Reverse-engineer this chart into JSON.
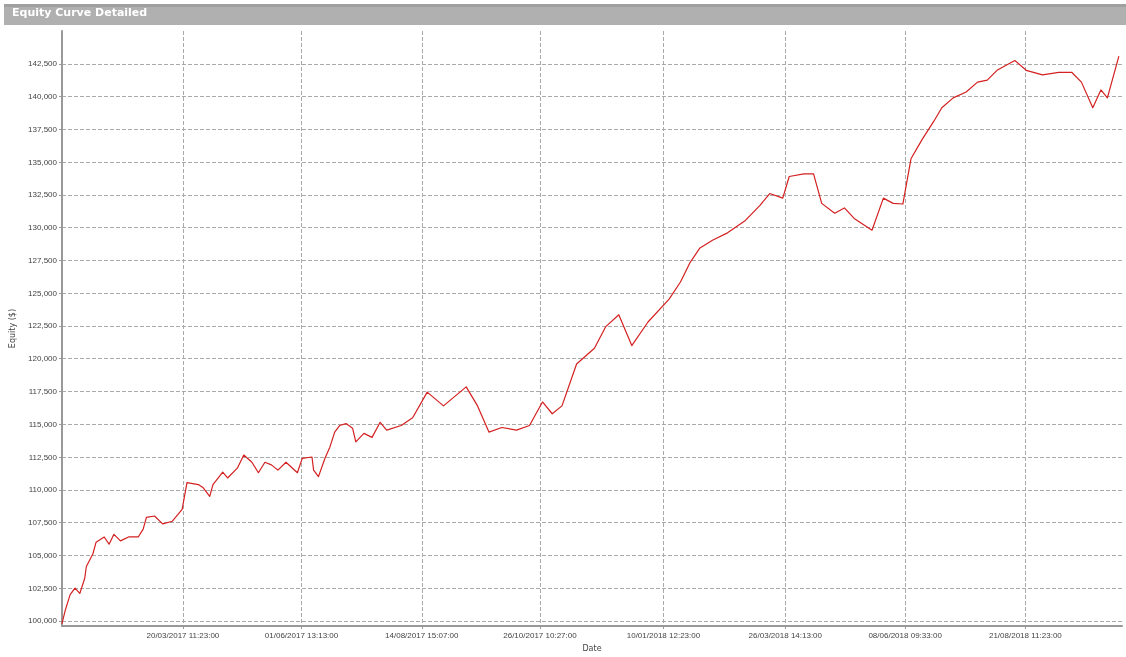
{
  "chart_data": {
    "type": "line",
    "title": "Equity Curve Detailed",
    "xlabel": "Date",
    "ylabel": "Equity ($)",
    "x": [
      "2017-01-05",
      "2017-01-07",
      "2017-01-10",
      "2017-01-13",
      "2017-01-16",
      "2017-01-19",
      "2017-01-20",
      "2017-01-24",
      "2017-01-26",
      "2017-01-31",
      "2017-02-03",
      "2017-02-06",
      "2017-02-10",
      "2017-02-15",
      "2017-02-21",
      "2017-02-24",
      "2017-02-26",
      "2017-03-03",
      "2017-03-08",
      "2017-03-14",
      "2017-03-20",
      "2017-03-23",
      "2017-03-30",
      "2017-04-02",
      "2017-04-06",
      "2017-04-08",
      "2017-04-14",
      "2017-04-17",
      "2017-04-23",
      "2017-04-27",
      "2017-05-02",
      "2017-05-06",
      "2017-05-10",
      "2017-05-14",
      "2017-05-18",
      "2017-05-23",
      "2017-05-30",
      "2017-06-02",
      "2017-06-08",
      "2017-06-09",
      "2017-06-12",
      "2017-06-16",
      "2017-06-19",
      "2017-06-22",
      "2017-06-25",
      "2017-06-29",
      "2017-07-03",
      "2017-07-05",
      "2017-07-10",
      "2017-07-15",
      "2017-07-20",
      "2017-07-24",
      "2017-08-02",
      "2017-08-09",
      "2017-08-18",
      "2017-08-28",
      "2017-09-11",
      "2017-09-18",
      "2017-09-25",
      "2017-10-03",
      "2017-10-12",
      "2017-10-20",
      "2017-10-28",
      "2017-11-03",
      "2017-11-09",
      "2017-11-18",
      "2017-11-29",
      "2017-12-06",
      "2017-12-14",
      "2017-12-22",
      "2018-01-01",
      "2018-01-14",
      "2018-01-21",
      "2018-01-27",
      "2018-02-02",
      "2018-02-10",
      "2018-02-19",
      "2018-03-02",
      "2018-03-11",
      "2018-03-17",
      "2018-03-25",
      "2018-03-29",
      "2018-04-07",
      "2018-04-13",
      "2018-04-18",
      "2018-04-26",
      "2018-05-02",
      "2018-05-08",
      "2018-05-19",
      "2018-05-26",
      "2018-06-01",
      "2018-06-07",
      "2018-06-12",
      "2018-06-19",
      "2018-06-26",
      "2018-07-01",
      "2018-07-08",
      "2018-07-16",
      "2018-07-23",
      "2018-07-29",
      "2018-08-04",
      "2018-08-15",
      "2018-08-22",
      "2018-09-01",
      "2018-09-11",
      "2018-09-19",
      "2018-09-25",
      "2018-10-02",
      "2018-10-07",
      "2018-10-11",
      "2018-10-18"
    ],
    "series": [
      {
        "color": "#d42020",
        "values": [
          99800,
          100800,
          102000,
          102500,
          102100,
          103250,
          104150,
          105100,
          106000,
          106400,
          105850,
          106600,
          106100,
          106400,
          106400,
          107000,
          107900,
          108000,
          107400,
          107600,
          108500,
          110550,
          110400,
          110150,
          109500,
          110400,
          111350,
          110900,
          111650,
          112650,
          112100,
          111300,
          112100,
          111900,
          111500,
          112100,
          111300,
          112400,
          112500,
          111500,
          111000,
          112400,
          113250,
          114400,
          114900,
          115050,
          114700,
          113650,
          114300,
          114000,
          115150,
          114550,
          114900,
          115500,
          117450,
          116400,
          117850,
          116400,
          114400,
          114750,
          114550,
          114900,
          116700,
          115800,
          116400,
          119600,
          120800,
          122450,
          123350,
          121000,
          122800,
          124550,
          125850,
          127350,
          128450,
          129050,
          129600,
          130550,
          131700,
          132600,
          132250,
          133900,
          134100,
          134100,
          131850,
          131100,
          131500,
          130700,
          129800,
          132250,
          131850,
          131800,
          135250,
          136750,
          138100,
          139150,
          139900,
          140350,
          141100,
          141250,
          142000,
          142750,
          142000,
          141650,
          141850,
          141850,
          141100,
          139150,
          140500,
          139900,
          143050
        ]
      }
    ],
    "xlim": [
      "2017-01-05",
      "2018-10-20"
    ],
    "xticks": [
      {
        "value": "2017-03-20T11:23",
        "label": "20/03/2017 11:23:00"
      },
      {
        "value": "2017-06-01T13:13",
        "label": "01/06/2017 13:13:00"
      },
      {
        "value": "2017-08-14T15:07",
        "label": "14/08/2017 15:07:00"
      },
      {
        "value": "2017-10-26T10:27",
        "label": "26/10/2017 10:27:00"
      },
      {
        "value": "2018-01-10T12:23",
        "label": "10/01/2018 12:23:00"
      },
      {
        "value": "2018-03-26T14:13",
        "label": "26/03/2018 14:13:00"
      },
      {
        "value": "2018-06-08T09:33",
        "label": "08/06/2018 09:33:00"
      },
      {
        "value": "2018-08-21T11:23",
        "label": "21/08/2018 11:23:00"
      }
    ],
    "ylim": [
      99600,
      145000
    ],
    "yticks": [
      {
        "value": 100000,
        "label": "100,000"
      },
      {
        "value": 102500,
        "label": "102,500"
      },
      {
        "value": 105000,
        "label": "105,000"
      },
      {
        "value": 107500,
        "label": "107,500"
      },
      {
        "value": 110000,
        "label": "110,000"
      },
      {
        "value": 112500,
        "label": "112,500"
      },
      {
        "value": 115000,
        "label": "115,000"
      },
      {
        "value": 117500,
        "label": "117,500"
      },
      {
        "value": 120000,
        "label": "120,000"
      },
      {
        "value": 122500,
        "label": "122,500"
      },
      {
        "value": 125000,
        "label": "125,000"
      },
      {
        "value": 127500,
        "label": "127,500"
      },
      {
        "value": 130000,
        "label": "130,000"
      },
      {
        "value": 132500,
        "label": "132,500"
      },
      {
        "value": 135000,
        "label": "135,000"
      },
      {
        "value": 137500,
        "label": "137,500"
      },
      {
        "value": 140000,
        "label": "140,000"
      },
      {
        "value": 142500,
        "label": "142,500"
      }
    ],
    "grid": true,
    "marker": "none",
    "line_style": "solid"
  }
}
